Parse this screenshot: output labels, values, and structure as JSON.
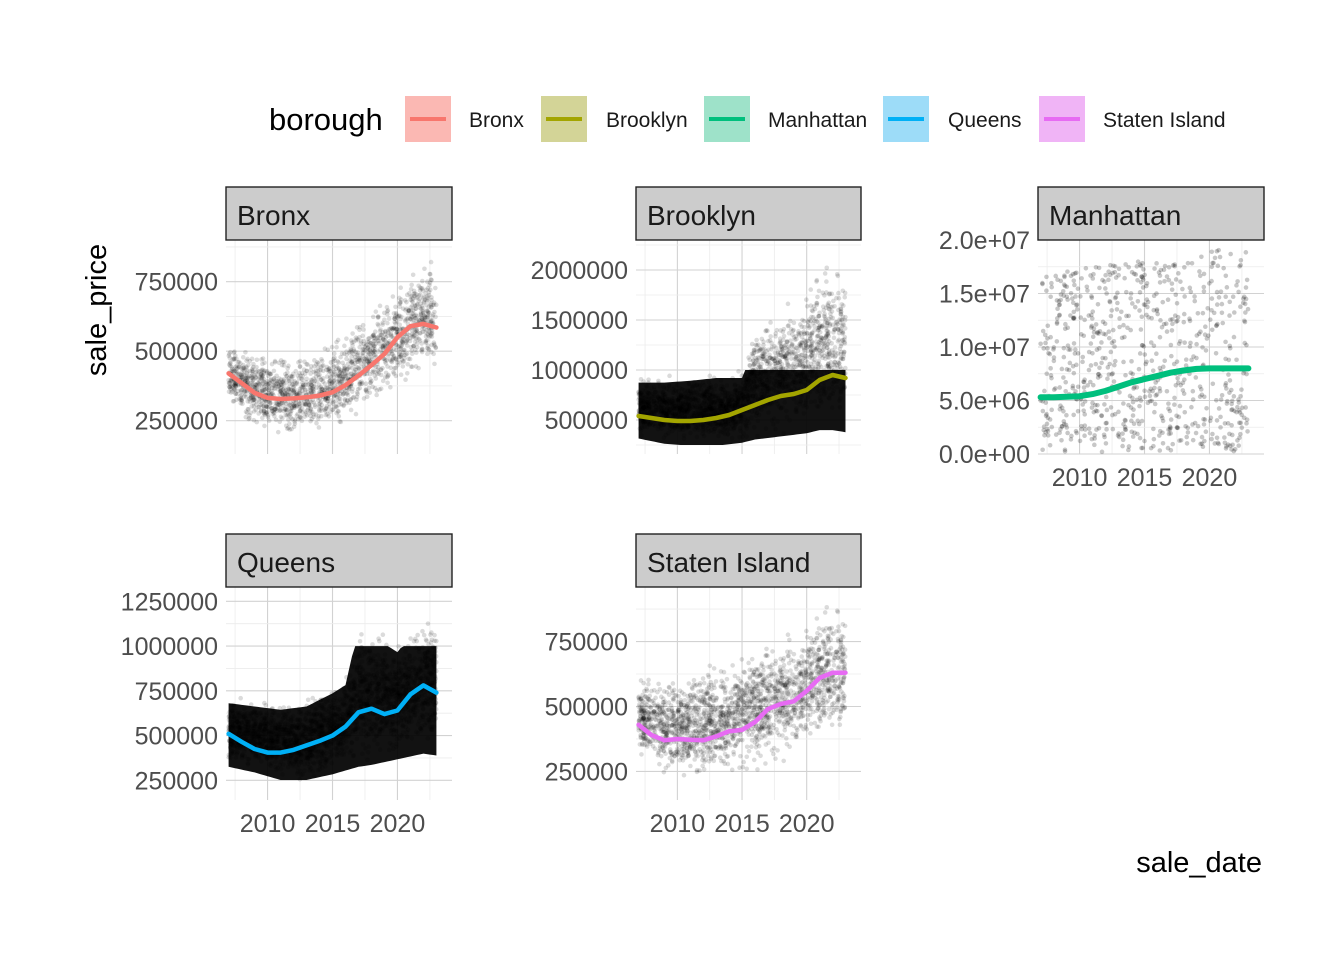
{
  "chart_data": {
    "type": "scatter",
    "subtype": "faceted scatter with smoothed trend lines",
    "xlabel": "sale_date",
    "ylabel": "sale_price",
    "legend": {
      "title": "borough",
      "position": "top",
      "items": [
        {
          "name": "Bronx",
          "color": "#F8766D",
          "fill": "#FBB8B3"
        },
        {
          "name": "Brooklyn",
          "color": "#A3A500",
          "fill": "#D3D497"
        },
        {
          "name": "Manhattan",
          "color": "#00BF7D",
          "fill": "#9EE2C9"
        },
        {
          "name": "Queens",
          "color": "#00B0F6",
          "fill": "#9DDCF8"
        },
        {
          "name": "Staten Island",
          "color": "#E76BF3",
          "fill": "#F0B4F6"
        }
      ]
    },
    "grid": true,
    "point_color": "#000000",
    "x_tick_labels": [
      "2010",
      "2015",
      "2020"
    ],
    "x_ticks": [
      2010,
      2015,
      2020
    ],
    "xlim": [
      2006.8,
      2024.2
    ],
    "facets": [
      {
        "name": "Bronx",
        "ylim": [
          130000,
          900000
        ],
        "yticks": [
          250000,
          500000,
          750000
        ],
        "ytick_labels": [
          "250000",
          "500000",
          "750000"
        ],
        "show_x_labels": false,
        "trend_color": "#F8766D",
        "trend": {
          "x": [
            2007,
            2008,
            2009,
            2010,
            2011,
            2012,
            2013,
            2014,
            2015,
            2016,
            2017,
            2018,
            2019,
            2020,
            2021,
            2022,
            2023
          ],
          "y": [
            420000,
            385000,
            350000,
            332000,
            328000,
            330000,
            334000,
            340000,
            352000,
            378000,
            412000,
            450000,
            490000,
            550000,
            590000,
            598000,
            585000
          ]
        },
        "cloud": {
          "x": [
            2007,
            2008,
            2010,
            2012,
            2014,
            2016,
            2018,
            2020,
            2021,
            2022,
            2023
          ],
          "lo": [
            300000,
            230000,
            180000,
            170000,
            180000,
            230000,
            280000,
            350000,
            380000,
            380000,
            340000
          ],
          "hi": [
            560000,
            540000,
            510000,
            500000,
            520000,
            580000,
            680000,
            760000,
            820000,
            880000,
            860000
          ]
        },
        "n_points": 1700
      },
      {
        "name": "Brooklyn",
        "ylim": [
          160000,
          2300000
        ],
        "yticks": [
          500000,
          1000000,
          1500000,
          2000000
        ],
        "ytick_labels": [
          "500000",
          "1000000",
          "1500000",
          "2000000"
        ],
        "show_x_labels": false,
        "trend_color": "#A3A500",
        "trend": {
          "x": [
            2007,
            2008,
            2009,
            2010,
            2011,
            2012,
            2013,
            2014,
            2015,
            2016,
            2017,
            2018,
            2019,
            2020,
            2021,
            2022,
            2023
          ],
          "y": [
            540000,
            520000,
            500000,
            490000,
            490000,
            500000,
            520000,
            550000,
            600000,
            650000,
            700000,
            740000,
            760000,
            800000,
            900000,
            950000,
            920000
          ]
        },
        "cloud": {
          "x": [
            2007,
            2009,
            2011,
            2013,
            2015,
            2016,
            2018,
            2020,
            2021,
            2022,
            2023
          ],
          "lo": [
            300000,
            250000,
            230000,
            230000,
            260000,
            290000,
            320000,
            350000,
            380000,
            380000,
            360000
          ],
          "hi": [
            950000,
            950000,
            970000,
            1000000,
            1000000,
            1500000,
            1700000,
            1900000,
            2100000,
            2150000,
            2100000
          ]
        },
        "dense_band": [
          250000,
          1000000
        ],
        "n_points": 2200
      },
      {
        "name": "Manhattan",
        "ylim": [
          0,
          20000000
        ],
        "yticks": [
          0,
          5000000,
          10000000,
          15000000,
          20000000
        ],
        "ytick_labels": [
          "0.0e+00",
          "5.0e+06",
          "1.0e+07",
          "1.5e+07",
          "2.0e+07"
        ],
        "show_x_labels": true,
        "trend_color": "#00BF7D",
        "trend": {
          "x": [
            2007,
            2008,
            2009,
            2010,
            2011,
            2012,
            2013,
            2014,
            2015,
            2016,
            2017,
            2018,
            2019,
            2020,
            2021,
            2022,
            2023
          ],
          "y": [
            5300000,
            5300000,
            5350000,
            5400000,
            5600000,
            5900000,
            6300000,
            6700000,
            7000000,
            7300000,
            7600000,
            7800000,
            7950000,
            8000000,
            8000000,
            8000000,
            8000000
          ]
        },
        "cloud": {
          "x": [
            2007,
            2023
          ],
          "lo": [
            200000,
            200000
          ],
          "hi": [
            17000000,
            19500000
          ]
        },
        "n_points": 750
      },
      {
        "name": "Queens",
        "ylim": [
          140000,
          1330000
        ],
        "yticks": [
          250000,
          500000,
          750000,
          1000000,
          1250000
        ],
        "ytick_labels": [
          "250000",
          "500000",
          "750000",
          "1000000",
          "1250000"
        ],
        "show_x_labels": true,
        "trend_color": "#00B0F6",
        "trend": {
          "x": [
            2007,
            2008,
            2009,
            2010,
            2011,
            2012,
            2013,
            2014,
            2015,
            2016,
            2017,
            2018,
            2019,
            2020,
            2021,
            2022,
            2023
          ],
          "y": [
            510000,
            465000,
            425000,
            405000,
            405000,
            420000,
            445000,
            470000,
            500000,
            550000,
            630000,
            650000,
            620000,
            640000,
            730000,
            780000,
            740000
          ]
        },
        "cloud": {
          "x": [
            2007,
            2009,
            2011,
            2013,
            2015,
            2016,
            2017,
            2018,
            2020,
            2022,
            2023
          ],
          "lo": [
            310000,
            280000,
            240000,
            240000,
            270000,
            290000,
            310000,
            320000,
            350000,
            380000,
            370000
          ],
          "hi": [
            740000,
            720000,
            700000,
            720000,
            800000,
            850000,
            1200000,
            1150000,
            1050000,
            1250000,
            1200000
          ]
        },
        "dense_band": [
          170000,
          1000000
        ],
        "n_points": 2400
      },
      {
        "name": "Staten Island",
        "ylim": [
          140000,
          960000
        ],
        "yticks": [
          250000,
          500000,
          750000
        ],
        "ytick_labels": [
          "250000",
          "500000",
          "750000"
        ],
        "show_x_labels": true,
        "trend_color": "#E76BF3",
        "trend": {
          "x": [
            2007,
            2008,
            2009,
            2010,
            2011,
            2012,
            2013,
            2014,
            2015,
            2016,
            2017,
            2018,
            2019,
            2020,
            2021,
            2022,
            2023
          ],
          "y": [
            430000,
            390000,
            370000,
            375000,
            372000,
            370000,
            385000,
            405000,
            410000,
            440000,
            490000,
            510000,
            520000,
            560000,
            610000,
            630000,
            630000
          ]
        },
        "cloud": {
          "x": [
            2007,
            2009,
            2011,
            2013,
            2015,
            2017,
            2019,
            2021,
            2022,
            2023
          ],
          "lo": [
            300000,
            200000,
            180000,
            190000,
            220000,
            250000,
            290000,
            340000,
            350000,
            340000
          ],
          "hi": [
            620000,
            640000,
            660000,
            700000,
            720000,
            780000,
            820000,
            900000,
            930000,
            920000
          ]
        },
        "n_points": 2000
      }
    ]
  }
}
